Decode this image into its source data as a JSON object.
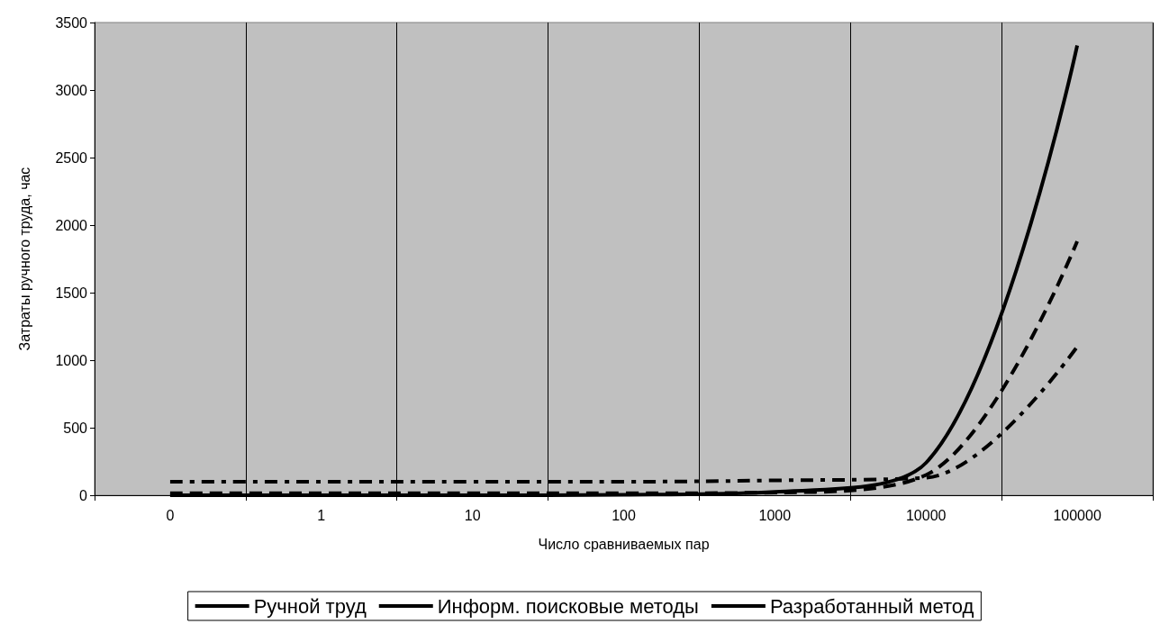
{
  "chart_data": {
    "type": "line",
    "xlabel": "Число сравниваемых пар",
    "ylabel": "Затраты ручного труда, час",
    "categories": [
      "0",
      "1",
      "10",
      "100",
      "1000",
      "10000",
      "100000"
    ],
    "series": [
      {
        "name": "Ручной труд",
        "color": "#000000",
        "line_style": "solid",
        "values": [
          0,
          0,
          0,
          3,
          25,
          240,
          3330
        ]
      },
      {
        "name": "Информ. поисковые методы",
        "color": "#000000",
        "line_style": "dashed",
        "values": [
          15,
          15,
          15,
          15,
          20,
          150,
          1880
        ]
      },
      {
        "name": "Разработанный метод",
        "color": "#000000",
        "line_style": "dashdot",
        "values": [
          100,
          100,
          100,
          100,
          110,
          130,
          1100
        ]
      }
    ],
    "ylim": [
      0,
      3500
    ],
    "yticks": [
      0,
      500,
      1000,
      1500,
      2000,
      2500,
      3000,
      3500
    ],
    "grid": "x",
    "legend": "bottom",
    "marker": "none"
  }
}
